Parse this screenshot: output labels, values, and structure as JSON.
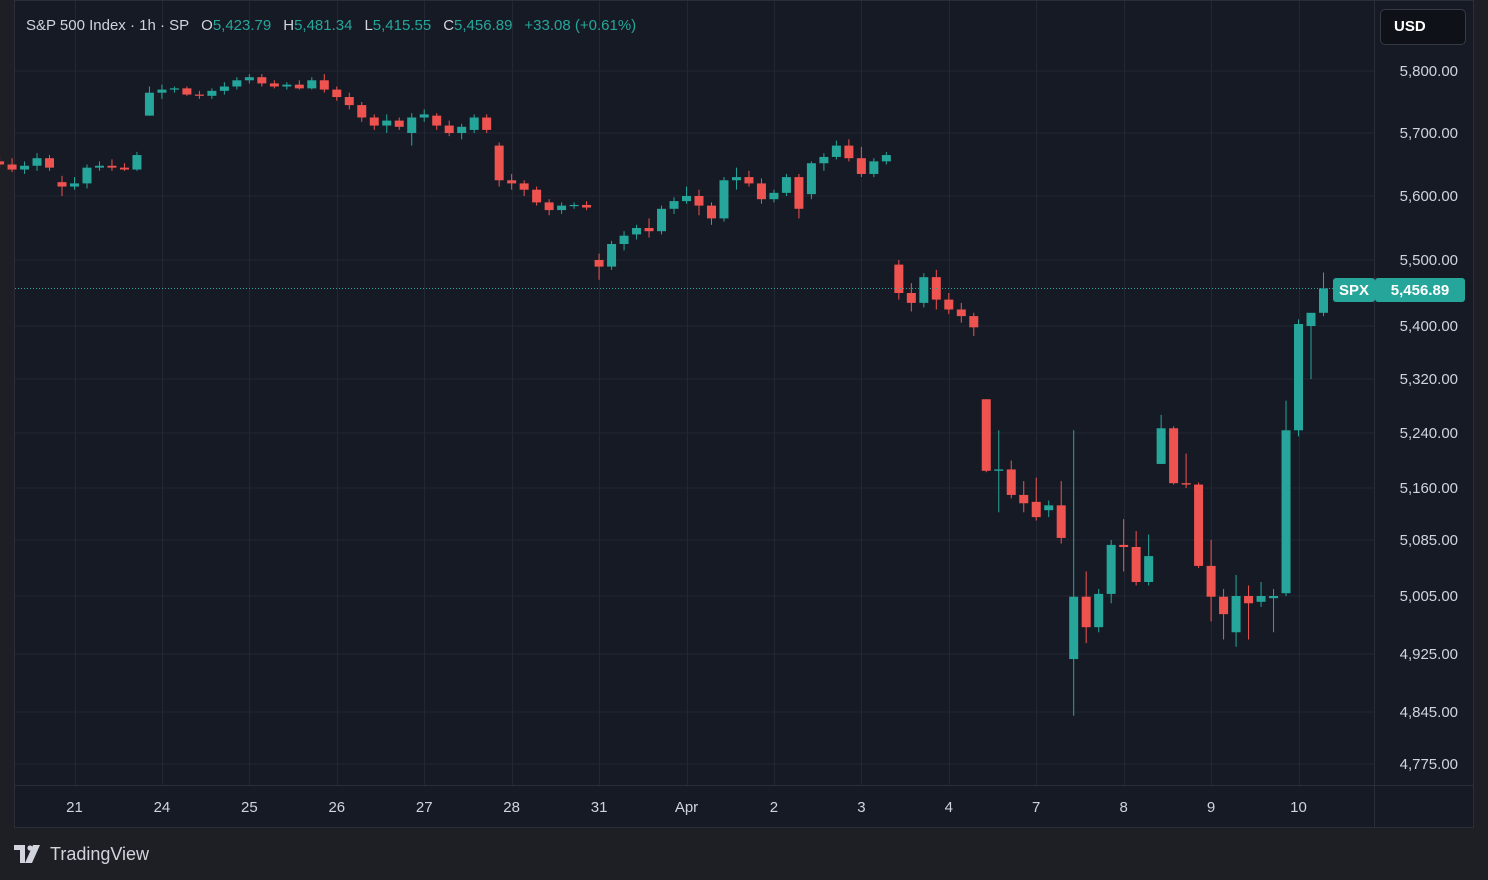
{
  "legend": {
    "symbol": "S&P 500 Index · 1h · SP",
    "open_key": "O",
    "open": "5,423.79",
    "high_key": "H",
    "high": "5,481.34",
    "low_key": "L",
    "low": "5,415.55",
    "close_key": "C",
    "close": "5,456.89",
    "change": "+33.08 (+0.61%)"
  },
  "currency_button": "USD",
  "last_price": {
    "tag": "SPX",
    "value": "5,456.89",
    "price": 5456.89,
    "color": "#26a69a"
  },
  "brand": {
    "name": "TradingView",
    "logo": "tradingview-logo-icon"
  },
  "colors": {
    "up": "#26a69a",
    "down": "#ef5350",
    "background": "#161a25",
    "grid": "#232733"
  },
  "chart_data": {
    "type": "candlestick",
    "title": "S&P 500 Index · 1h · SP",
    "y_axis_labels": [
      {
        "label": "5,800.00",
        "value": 5800
      },
      {
        "label": "5,700.00",
        "value": 5700
      },
      {
        "label": "5,600.00",
        "value": 5600
      },
      {
        "label": "5,500.00",
        "value": 5500
      },
      {
        "label": "5,400.00",
        "value": 5400
      },
      {
        "label": "5,320.00",
        "value": 5320
      },
      {
        "label": "5,240.00",
        "value": 5240
      },
      {
        "label": "5,160.00",
        "value": 5160
      },
      {
        "label": "5,085.00",
        "value": 5085
      },
      {
        "label": "5,005.00",
        "value": 5005
      },
      {
        "label": "4,925.00",
        "value": 4925
      },
      {
        "label": "4,845.00",
        "value": 4845
      },
      {
        "label": "4,775.00",
        "value": 4775
      }
    ],
    "x_axis_labels": [
      {
        "label": "21",
        "bar": 7
      },
      {
        "label": "24",
        "bar": 14
      },
      {
        "label": "25",
        "bar": 21
      },
      {
        "label": "26",
        "bar": 28
      },
      {
        "label": "27",
        "bar": 35
      },
      {
        "label": "28",
        "bar": 42
      },
      {
        "label": "31",
        "bar": 49
      },
      {
        "label": "Apr",
        "bar": 56
      },
      {
        "label": "2",
        "bar": 63
      },
      {
        "label": "3",
        "bar": 70
      },
      {
        "label": "4",
        "bar": 77
      },
      {
        "label": "7",
        "bar": 84
      },
      {
        "label": "8",
        "bar": 91
      },
      {
        "label": "9",
        "bar": 98
      },
      {
        "label": "10",
        "bar": 105
      }
    ],
    "candles": [
      [
        5680,
        5688,
        5650,
        5655
      ],
      [
        5655,
        5665,
        5645,
        5650
      ],
      [
        5650,
        5660,
        5638,
        5642
      ],
      [
        5642,
        5655,
        5635,
        5648
      ],
      [
        5648,
        5668,
        5640,
        5660
      ],
      [
        5660,
        5665,
        5640,
        5645
      ],
      [
        5622,
        5632,
        5600,
        5615
      ],
      [
        5615,
        5630,
        5610,
        5620
      ],
      [
        5620,
        5650,
        5612,
        5645
      ],
      [
        5645,
        5655,
        5640,
        5648
      ],
      [
        5648,
        5658,
        5640,
        5645
      ],
      [
        5645,
        5652,
        5640,
        5642
      ],
      [
        5642,
        5670,
        5640,
        5665
      ],
      [
        5728,
        5775,
        5728,
        5765
      ],
      [
        5765,
        5778,
        5755,
        5770
      ],
      [
        5770,
        5775,
        5765,
        5772
      ],
      [
        5772,
        5775,
        5760,
        5762
      ],
      [
        5762,
        5768,
        5755,
        5760
      ],
      [
        5760,
        5772,
        5755,
        5768
      ],
      [
        5768,
        5782,
        5762,
        5775
      ],
      [
        5775,
        5790,
        5770,
        5785
      ],
      [
        5785,
        5795,
        5780,
        5790
      ],
      [
        5790,
        5795,
        5775,
        5780
      ],
      [
        5780,
        5785,
        5772,
        5775
      ],
      [
        5775,
        5782,
        5770,
        5778
      ],
      [
        5778,
        5785,
        5770,
        5772
      ],
      [
        5772,
        5790,
        5770,
        5785
      ],
      [
        5785,
        5795,
        5765,
        5770
      ],
      [
        5770,
        5775,
        5752,
        5758
      ],
      [
        5758,
        5765,
        5738,
        5745
      ],
      [
        5745,
        5750,
        5718,
        5725
      ],
      [
        5725,
        5730,
        5705,
        5712
      ],
      [
        5712,
        5730,
        5700,
        5720
      ],
      [
        5720,
        5725,
        5705,
        5710
      ],
      [
        5700,
        5732,
        5680,
        5725
      ],
      [
        5725,
        5738,
        5718,
        5730
      ],
      [
        5728,
        5732,
        5705,
        5712
      ],
      [
        5712,
        5720,
        5695,
        5700
      ],
      [
        5700,
        5715,
        5690,
        5710
      ],
      [
        5705,
        5730,
        5700,
        5725
      ],
      [
        5725,
        5730,
        5700,
        5705
      ],
      [
        5680,
        5685,
        5615,
        5625
      ],
      [
        5625,
        5635,
        5610,
        5620
      ],
      [
        5620,
        5625,
        5600,
        5610
      ],
      [
        5610,
        5615,
        5585,
        5590
      ],
      [
        5590,
        5595,
        5570,
        5578
      ],
      [
        5578,
        5590,
        5572,
        5585
      ],
      [
        5585,
        5590,
        5580,
        5586
      ],
      [
        5586,
        5592,
        5578,
        5582
      ],
      [
        5500,
        5510,
        5470,
        5490
      ],
      [
        5490,
        5530,
        5485,
        5525
      ],
      [
        5525,
        5545,
        5515,
        5538
      ],
      [
        5540,
        5555,
        5532,
        5550
      ],
      [
        5550,
        5565,
        5535,
        5545
      ],
      [
        5545,
        5585,
        5540,
        5580
      ],
      [
        5580,
        5598,
        5572,
        5592
      ],
      [
        5592,
        5615,
        5588,
        5600
      ],
      [
        5600,
        5610,
        5570,
        5585
      ],
      [
        5585,
        5590,
        5555,
        5565
      ],
      [
        5565,
        5630,
        5560,
        5625
      ],
      [
        5625,
        5645,
        5610,
        5630
      ],
      [
        5630,
        5640,
        5615,
        5620
      ],
      [
        5620,
        5628,
        5588,
        5595
      ],
      [
        5595,
        5610,
        5590,
        5605
      ],
      [
        5605,
        5635,
        5600,
        5630
      ],
      [
        5630,
        5635,
        5565,
        5580
      ],
      [
        5603,
        5655,
        5595,
        5652
      ],
      [
        5652,
        5668,
        5640,
        5662
      ],
      [
        5662,
        5688,
        5658,
        5680
      ],
      [
        5680,
        5690,
        5655,
        5660
      ],
      [
        5660,
        5678,
        5630,
        5635
      ],
      [
        5635,
        5660,
        5630,
        5655
      ],
      [
        5655,
        5670,
        5650,
        5665
      ],
      [
        5493,
        5500,
        5440,
        5450
      ],
      [
        5450,
        5465,
        5422,
        5435
      ],
      [
        5435,
        5480,
        5428,
        5474
      ],
      [
        5474,
        5485,
        5425,
        5440
      ],
      [
        5440,
        5450,
        5418,
        5425
      ],
      [
        5425,
        5435,
        5405,
        5415
      ],
      [
        5415,
        5420,
        5385,
        5398
      ],
      [
        5290,
        5290,
        5183,
        5185
      ],
      [
        5185,
        5244,
        5125,
        5187
      ],
      [
        5187,
        5200,
        5145,
        5150
      ],
      [
        5150,
        5170,
        5125,
        5138
      ],
      [
        5140,
        5175,
        5113,
        5118
      ],
      [
        5128,
        5142,
        5118,
        5135
      ],
      [
        5135,
        5170,
        5080,
        5088
      ],
      [
        4918,
        5244,
        4840,
        5004
      ],
      [
        5004,
        5040,
        4940,
        4962
      ],
      [
        4962,
        5015,
        4955,
        5008
      ],
      [
        5008,
        5085,
        4995,
        5078
      ],
      [
        5078,
        5115,
        5040,
        5075
      ],
      [
        5075,
        5098,
        5020,
        5025
      ],
      [
        5025,
        5093,
        5020,
        5062
      ],
      [
        5195,
        5267,
        5195,
        5247
      ],
      [
        5247,
        5250,
        5165,
        5167
      ],
      [
        5167,
        5210,
        5160,
        5165
      ],
      [
        5165,
        5168,
        5045,
        5048
      ],
      [
        5048,
        5085,
        4970,
        5004
      ],
      [
        5004,
        5015,
        4945,
        4980
      ],
      [
        4955,
        5035,
        4935,
        5005
      ],
      [
        5005,
        5020,
        4945,
        4995
      ],
      [
        4997,
        5025,
        4990,
        5005
      ],
      [
        5002,
        5015,
        4955,
        5005
      ],
      [
        5009,
        5288,
        5005,
        5244
      ],
      [
        5244,
        5410,
        5235,
        5403
      ],
      [
        5400,
        5418,
        5320,
        5420
      ],
      [
        5420,
        5481,
        5415,
        5457
      ]
    ]
  }
}
